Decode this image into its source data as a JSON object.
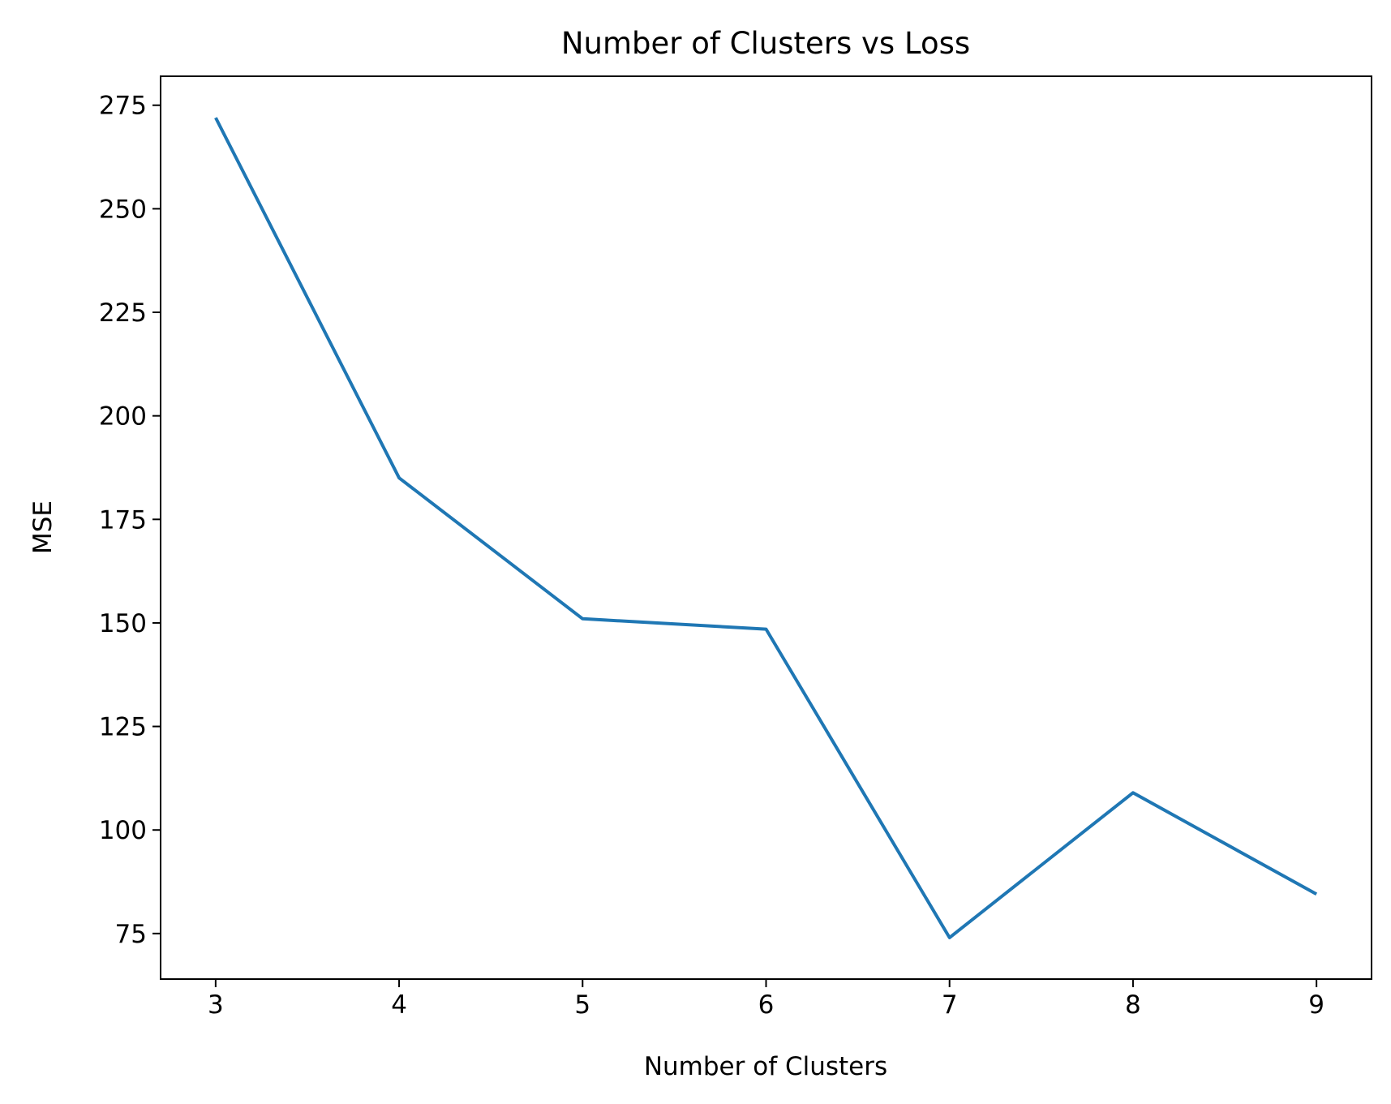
{
  "chart_data": {
    "type": "line",
    "title": "Number of Clusters vs Loss",
    "xlabel": "Number of Clusters",
    "ylabel": "MSE",
    "x": [
      3,
      4,
      5,
      6,
      7,
      8,
      9
    ],
    "series": [
      {
        "values": [
          272,
          185,
          151,
          148.5,
          74,
          109,
          84.5
        ],
        "color": "#1f77b4"
      }
    ],
    "xlim": [
      2.7,
      9.3
    ],
    "ylim": [
      64,
      282
    ],
    "xticks": [
      3,
      4,
      5,
      6,
      7,
      8,
      9
    ],
    "yticks": [
      75,
      100,
      125,
      150,
      175,
      200,
      225,
      250,
      275
    ],
    "grid": false,
    "legend": "none"
  }
}
